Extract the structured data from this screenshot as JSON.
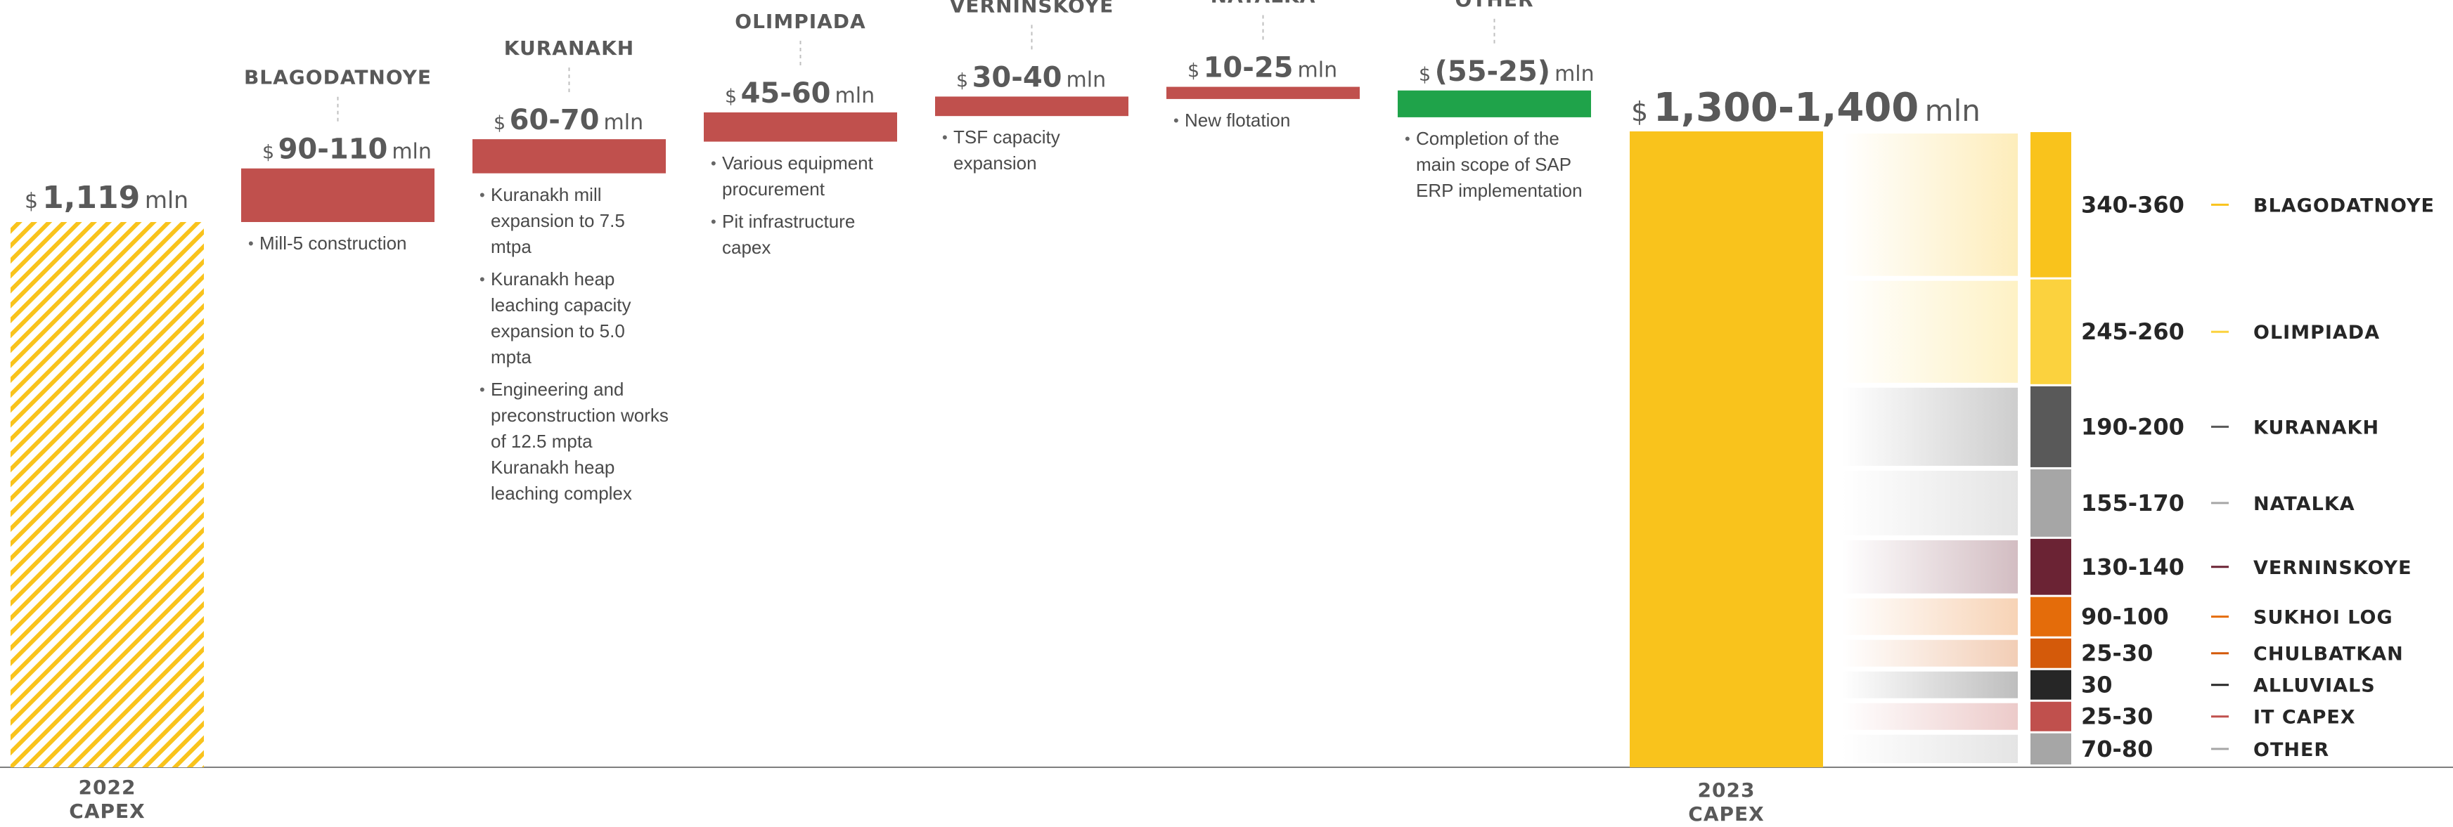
{
  "chart_data": {
    "type": "bar",
    "subtype": "waterfall",
    "currency": "$",
    "unit": "mln",
    "start": {
      "category": "2022 CAPEX",
      "value": 1119,
      "label": "1,119"
    },
    "end": {
      "category": "2023 CAPEX",
      "value_range": [
        1300,
        1400
      ],
      "label": "1,300-1,400"
    },
    "steps": [
      {
        "name": "BLAGODATNOYE",
        "label": "90-110",
        "range": [
          90,
          110
        ],
        "color": "#c0504d",
        "bullets": [
          "Mill-5 construction"
        ]
      },
      {
        "name": "KURANAKH",
        "label": "60-70",
        "range": [
          60,
          70
        ],
        "color": "#c0504d",
        "bullets": [
          "Kuranakh mill expansion to 7.5 mtpa",
          "Kuranakh heap leaching capacity expansion to 5.0 mpta",
          "Engineering and preconstruction works of 12.5 mpta Kuranakh heap leaching complex"
        ]
      },
      {
        "name": "OLIMPIADA",
        "label": "45-60",
        "range": [
          45,
          60
        ],
        "color": "#c0504d",
        "bullets": [
          "Various equipment procurement",
          "Pit infrastructure capex"
        ]
      },
      {
        "name": "VERNINSKOYE",
        "label": "30-40",
        "range": [
          30,
          40
        ],
        "color": "#c0504d",
        "bullets": [
          "TSF capacity expansion"
        ]
      },
      {
        "name": "NATALKA",
        "label": "10-25",
        "range": [
          10,
          25
        ],
        "color": "#c0504d",
        "bullets": [
          "New flotation"
        ]
      },
      {
        "name": "OTHER",
        "label": "(55-25)",
        "range": [
          -55,
          -25
        ],
        "color": "#1fa34a",
        "bullets": [
          "Completion of the main scope of SAP ERP implementation"
        ]
      }
    ],
    "breakdown": [
      {
        "value": "340-360",
        "range": [
          340,
          360
        ],
        "name": "BLAGODATNOYE",
        "color": "#f9c31c"
      },
      {
        "value": "245-260",
        "range": [
          245,
          260
        ],
        "name": "OLIMPIADA",
        "color": "#fbd23e"
      },
      {
        "value": "190-200",
        "range": [
          190,
          200
        ],
        "name": "KURANAKH",
        "color": "#595959"
      },
      {
        "value": "155-170",
        "range": [
          155,
          170
        ],
        "name": "NATALKA",
        "color": "#a6a6a6"
      },
      {
        "value": "130-140",
        "range": [
          130,
          140
        ],
        "name": "VERNINSKOYE",
        "color": "#6b2334"
      },
      {
        "value": "90-100",
        "range": [
          90,
          100
        ],
        "name": "SUKHOI LOG",
        "color": "#e46c0a"
      },
      {
        "value": "25-30",
        "range": [
          25,
          30
        ],
        "name": "CHULBATKAN",
        "color": "#d45a0a"
      },
      {
        "value": "30",
        "range": [
          30,
          30
        ],
        "name": "ALLUVIALS",
        "color": "#262626"
      },
      {
        "value": "25-30",
        "range": [
          25,
          30
        ],
        "name": "IT CAPEX",
        "color": "#c0504d"
      },
      {
        "value": "70-80",
        "range": [
          70,
          80
        ],
        "name": "OTHER",
        "color": "#a6a6a6"
      }
    ],
    "colors": {
      "start_bar": "#f9c31c",
      "end_bar": "#f9c31c",
      "hatch": "#f9c31c",
      "baseline": "#7f7f7f",
      "connector": "#bfbfbf",
      "text": "#595959"
    }
  }
}
